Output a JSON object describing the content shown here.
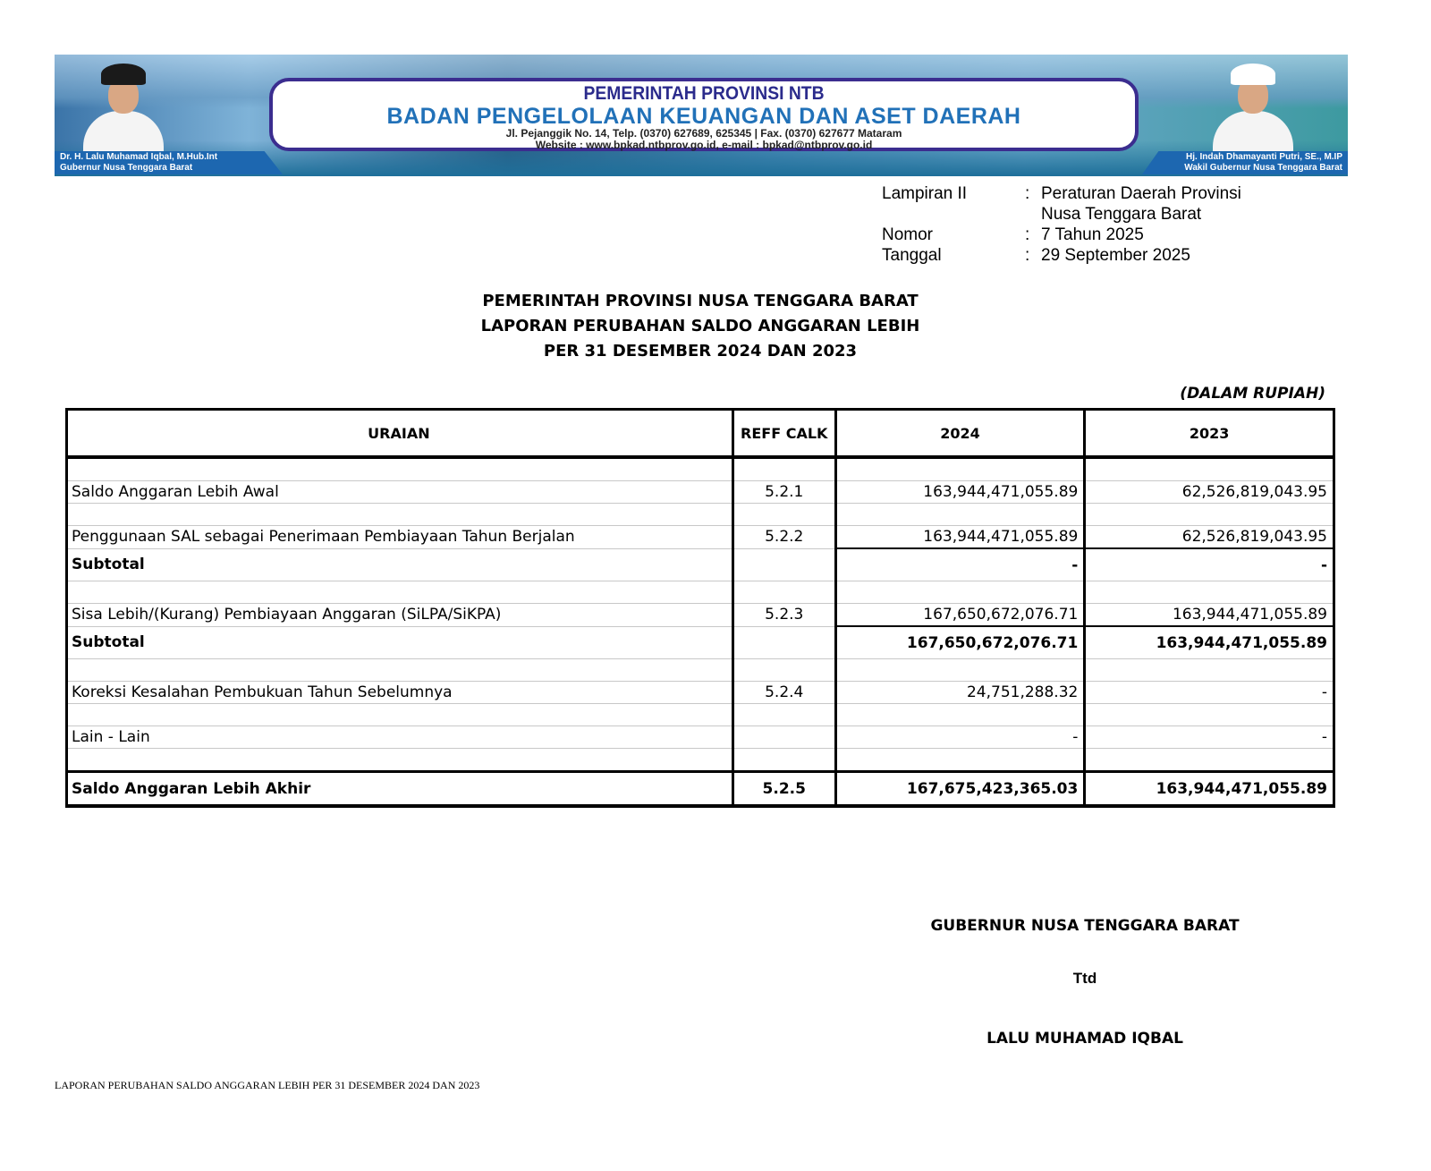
{
  "banner": {
    "line1": "PEMERINTAH PROVINSI NTB",
    "line2": "BADAN PENGELOLAAN KEUANGAN DAN ASET DAERAH",
    "line3": "Jl. Pejanggik No. 14, Telp. (0370) 627689, 625345 | Fax. (0370) 627677 Mataram",
    "line4": "Website : www.bpkad.ntbprov.go.id, e-mail : bpkad@ntbprov.go.id",
    "left_name": "Dr. H. Lalu Muhamad Iqbal, M.Hub.Int",
    "left_title": "Gubernur Nusa Tenggara Barat",
    "right_name": "Hj. Indah Dhamayanti Putri, SE., M.IP",
    "right_title": "Wakil Gubernur Nusa Tenggara Barat"
  },
  "meta": [
    {
      "key": "Lampiran II",
      "sep": ":",
      "value": "Peraturan Daerah Provinsi"
    },
    {
      "key": "",
      "sep": "",
      "value": "Nusa Tenggara Barat"
    },
    {
      "key": "Nomor",
      "sep": ":",
      "value": "7 Tahun 2025"
    },
    {
      "key": "Tanggal",
      "sep": ":",
      "value": "29 September 2025"
    }
  ],
  "heading": [
    "PEMERINTAH PROVINSI NUSA TENGGARA BARAT",
    "LAPORAN PERUBAHAN SALDO ANGGARAN LEBIH",
    "PER 31 DESEMBER 2024 DAN 2023"
  ],
  "unit": "(DALAM RUPIAH)",
  "table": {
    "headers": [
      "URAIAN",
      "REFF CALK",
      "2024",
      "2023"
    ],
    "rows": [
      {
        "label": "Saldo Anggaran Lebih Awal",
        "ref": "5.2.1",
        "y2024": "163,944,471,055.89",
        "y2023": "62,526,819,043.95"
      },
      {
        "label": "Penggunaan SAL sebagai Penerimaan Pembiayaan Tahun Berjalan",
        "ref": "5.2.2",
        "y2024": "163,944,471,055.89",
        "y2023": "62,526,819,043.95"
      },
      {
        "label": "Subtotal",
        "ref": "",
        "y2024": "-",
        "y2023": "-"
      },
      {
        "label": "Sisa Lebih/(Kurang) Pembiayaan Anggaran (SiLPA/SiKPA)",
        "ref": "5.2.3",
        "y2024": "167,650,672,076.71",
        "y2023": "163,944,471,055.89"
      },
      {
        "label": "Subtotal",
        "ref": "",
        "y2024": "167,650,672,076.71",
        "y2023": "163,944,471,055.89"
      },
      {
        "label": "Koreksi Kesalahan Pembukuan Tahun Sebelumnya",
        "ref": "5.2.4",
        "y2024": "24,751,288.32",
        "y2023": "-"
      },
      {
        "label": "Lain - Lain",
        "ref": "",
        "y2024": "-",
        "y2023": "-"
      },
      {
        "label": "Saldo Anggaran Lebih Akhir",
        "ref": "5.2.5",
        "y2024": "167,675,423,365.03",
        "y2023": "163,944,471,055.89"
      }
    ]
  },
  "signature": {
    "title": "GUBERNUR NUSA TENGGARA BARAT",
    "ttd": "Ttd",
    "name": "LALU MUHAMAD IQBAL"
  },
  "footer": "LAPORAN PERUBAHAN SALDO ANGGARAN LEBIH PER 31 DESEMBER 2024 DAN 2023"
}
